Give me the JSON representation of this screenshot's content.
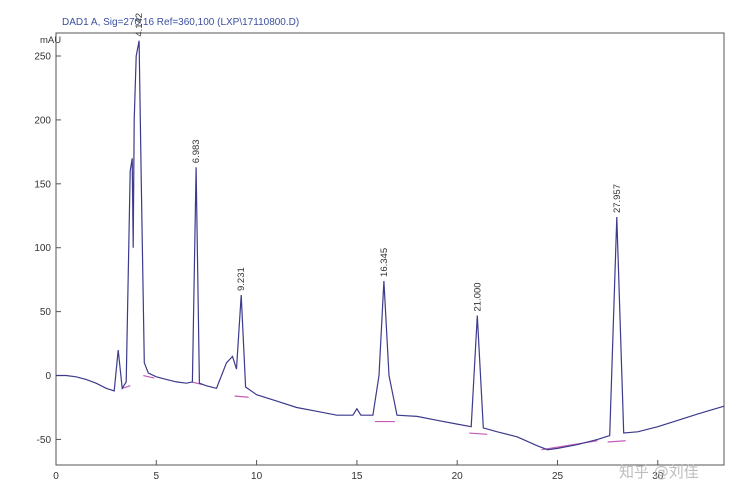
{
  "chart_data": {
    "type": "line",
    "title": "DAD1 A, Sig=270,16 Ref=360,100 (LXP\\17110800.D)",
    "ylabel": "mAU",
    "xlim": [
      0,
      33.3
    ],
    "ylim": [
      -70,
      268
    ],
    "x_ticks": [
      0,
      5,
      10,
      15,
      20,
      25,
      30
    ],
    "y_ticks": [
      -50,
      0,
      50,
      100,
      150,
      200,
      250
    ],
    "colors": {
      "trace": "#3c3a8c",
      "baseline": "#c45ab8",
      "title": "#3a4fa0"
    },
    "peaks": [
      {
        "label": "4.142",
        "x": 4.142,
        "y": 262
      },
      {
        "label": "6.983",
        "x": 6.983,
        "y": 163
      },
      {
        "label": "9.231",
        "x": 9.231,
        "y": 63
      },
      {
        "label": "16.345",
        "x": 16.345,
        "y": 74
      },
      {
        "label": "21.000",
        "x": 21.0,
        "y": 47
      },
      {
        "label": "27.957",
        "x": 27.957,
        "y": 124
      }
    ],
    "series": [
      {
        "x": [
          0,
          0.5,
          1.0,
          1.5,
          2.0,
          2.5,
          2.9,
          3.1,
          3.3,
          3.5,
          3.7,
          3.8,
          3.85,
          3.9,
          4.0,
          4.142,
          4.25,
          4.4,
          4.6,
          5.0,
          5.5,
          6.0,
          6.5,
          6.8,
          6.983,
          7.15,
          7.5,
          8.0,
          8.5,
          8.8,
          9.0,
          9.231,
          9.45,
          10.0,
          11.0,
          12.0,
          13.0,
          14.0,
          14.8,
          15.0,
          15.2,
          15.8,
          16.1,
          16.345,
          16.6,
          17.0,
          18.0,
          19.0,
          20.0,
          20.7,
          21.0,
          21.3,
          22.0,
          23.0,
          24.0,
          24.5,
          25.0,
          26.0,
          27.0,
          27.6,
          27.957,
          28.3,
          29.0,
          30.0,
          31.0,
          32.0,
          33.3
        ],
        "y": [
          0,
          0,
          -1,
          -3,
          -6,
          -10,
          -12,
          20,
          -10,
          -5,
          160,
          170,
          100,
          200,
          250,
          262,
          150,
          10,
          2,
          -1,
          -3,
          -5,
          -6,
          -5,
          163,
          -6,
          -8,
          -10,
          10,
          15,
          5,
          63,
          -9,
          -15,
          -20,
          -25,
          -28,
          -31,
          -31,
          -26,
          -31,
          -31,
          0,
          74,
          0,
          -31,
          -32,
          -35,
          -38,
          -40,
          47,
          -41,
          -44,
          -48,
          -55,
          -58,
          -57,
          -54,
          -50,
          -47,
          124,
          -45,
          -44,
          -40,
          -35,
          -30,
          -24
        ]
      }
    ],
    "baselines": [
      [
        [
          3.3,
          -10
        ],
        [
          3.7,
          -8
        ]
      ],
      [
        [
          4.35,
          0
        ],
        [
          4.9,
          -2
        ]
      ],
      [
        [
          6.75,
          -5
        ],
        [
          7.3,
          -7
        ]
      ],
      [
        [
          8.9,
          -16
        ],
        [
          9.6,
          -17
        ]
      ],
      [
        [
          15.9,
          -36
        ],
        [
          16.9,
          -36
        ]
      ],
      [
        [
          20.6,
          -45
        ],
        [
          21.5,
          -46
        ]
      ],
      [
        [
          24.2,
          -58
        ],
        [
          27.0,
          -51
        ]
      ],
      [
        [
          27.5,
          -52
        ],
        [
          28.4,
          -51
        ]
      ]
    ]
  },
  "watermark": "知乎 @刘佳"
}
